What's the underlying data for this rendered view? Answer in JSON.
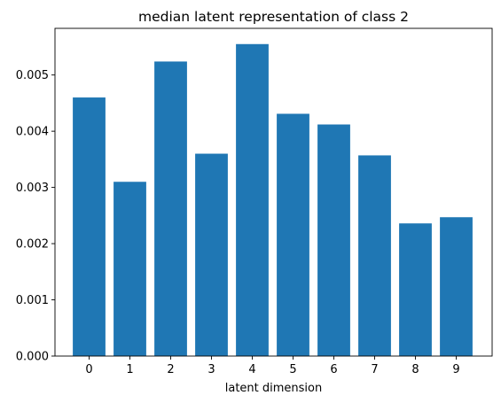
{
  "chart_data": {
    "type": "bar",
    "title": "median latent representation of class 2",
    "xlabel": "latent dimension",
    "ylabel": "",
    "categories": [
      "0",
      "1",
      "2",
      "3",
      "4",
      "5",
      "6",
      "7",
      "8",
      "9"
    ],
    "values": [
      0.0046,
      0.0031,
      0.00524,
      0.0036,
      0.00555,
      0.00431,
      0.00412,
      0.00357,
      0.00236,
      0.00247
    ],
    "ylim": [
      0,
      0.00583
    ],
    "yticks": [
      "0.000",
      "0.001",
      "0.002",
      "0.003",
      "0.004",
      "0.005"
    ],
    "ytick_values": [
      0,
      0.001,
      0.002,
      0.003,
      0.004,
      0.005
    ],
    "bar_color": "#1f77b4",
    "grid": false,
    "legend": "none"
  }
}
